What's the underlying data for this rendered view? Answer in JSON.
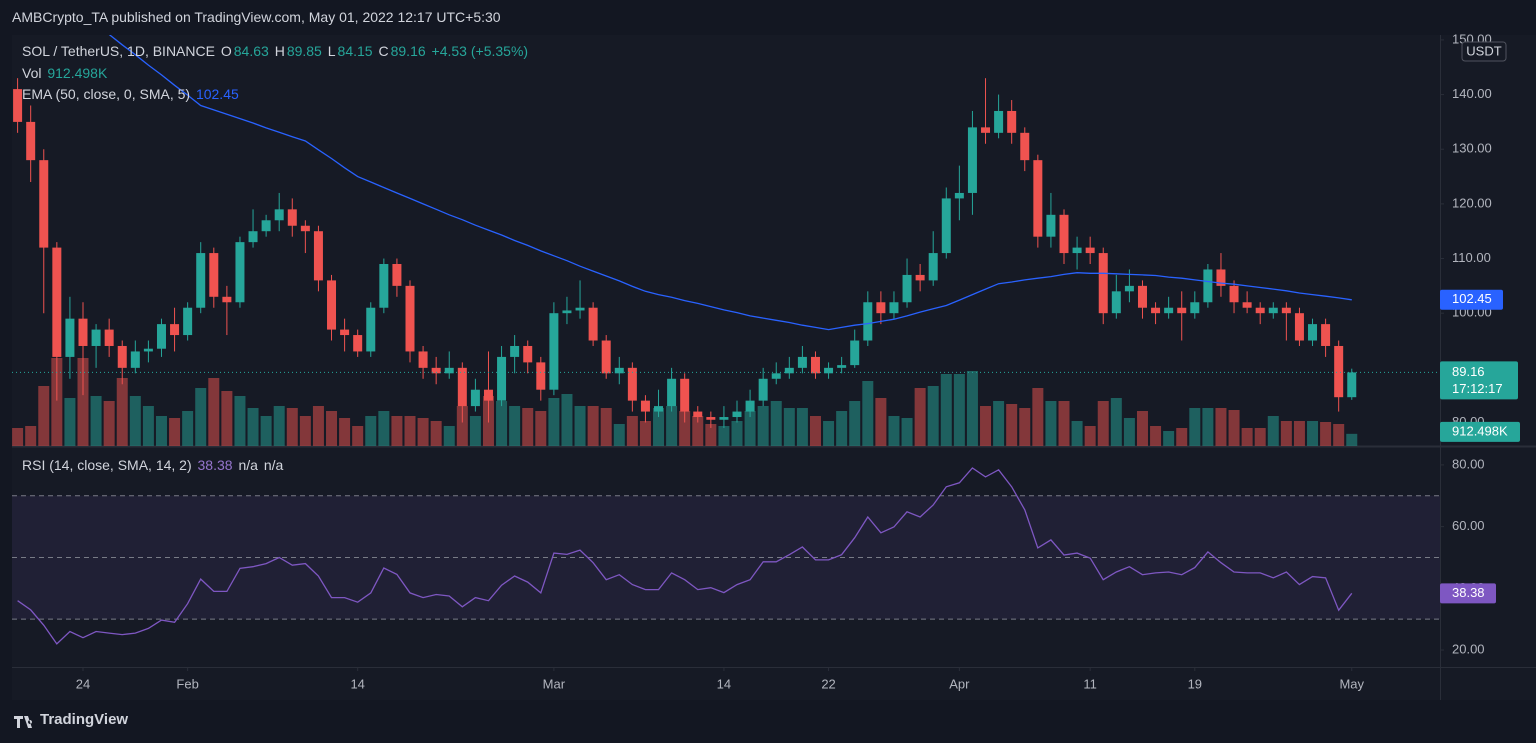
{
  "header": {
    "publisher": "AMBCrypto_TA published on TradingView.com, May 01, 2022 12:17 UTC+5:30"
  },
  "chart_data": {
    "type": "candlestick",
    "symbol_label": "SOL / TetherUS, 1D, BINANCE",
    "ohlc_keys": [
      "O",
      "H",
      "L",
      "C"
    ],
    "change_label": "+4.53 (+5.35%)",
    "currency": "USDT",
    "countdown": "17:12:17",
    "colors": {
      "up": "#26a69a",
      "down": "#ef5350"
    },
    "xticks": [
      {
        "value": 5,
        "label": "24"
      },
      {
        "value": 13,
        "label": "Feb"
      },
      {
        "value": 26,
        "label": "14"
      },
      {
        "value": 41,
        "label": "Mar"
      },
      {
        "value": 54,
        "label": "14"
      },
      {
        "value": 62,
        "label": "22"
      },
      {
        "value": 72,
        "label": "Apr"
      },
      {
        "value": 82,
        "label": "11"
      },
      {
        "value": 90,
        "label": "19"
      },
      {
        "value": 102,
        "label": "May"
      }
    ],
    "ylim": [
      75.7,
      150.9
    ],
    "yticks": [
      {
        "value": 80,
        "label": "80.00"
      },
      {
        "value": 90,
        "label": "90.00"
      },
      {
        "value": 100,
        "label": "100.00"
      },
      {
        "value": 110,
        "label": "110.00"
      },
      {
        "value": 120,
        "label": "120.00"
      },
      {
        "value": 130,
        "label": "130.00"
      },
      {
        "value": 140,
        "label": "140.00"
      },
      {
        "value": 150,
        "label": "150.00"
      }
    ],
    "open": [
      141,
      135,
      128,
      112,
      92,
      99,
      94,
      97,
      94,
      90,
      93,
      93.5,
      98,
      96,
      101,
      111,
      103,
      102,
      113,
      115,
      117,
      119,
      116,
      115,
      106,
      97,
      96,
      93,
      101,
      109,
      105,
      93,
      90,
      89,
      90,
      83,
      86,
      84,
      92,
      94,
      91,
      86,
      100,
      100.5,
      101,
      95,
      89,
      90,
      84,
      82,
      83,
      88,
      82,
      81,
      80.5,
      81,
      82,
      84,
      88,
      89,
      90,
      92,
      89,
      90,
      90.5,
      95,
      102,
      100,
      102,
      107,
      106,
      111,
      121,
      122,
      134,
      133,
      137,
      133,
      128,
      114,
      118,
      111,
      112,
      111,
      100,
      104,
      105,
      101,
      100,
      101,
      100,
      102,
      108,
      105,
      102,
      101,
      100,
      101,
      100,
      95,
      98,
      94,
      84.63
    ],
    "high": [
      143,
      138,
      130,
      113,
      103,
      102,
      98,
      99,
      95,
      95,
      95,
      99,
      101,
      102,
      113,
      112,
      105,
      114,
      119,
      118,
      122,
      121,
      117,
      116,
      107,
      99,
      97,
      102,
      110,
      110,
      106,
      94,
      92,
      93,
      91,
      88,
      93,
      94,
      96,
      95,
      92,
      102,
      103,
      106,
      102,
      96,
      92,
      91,
      85,
      86,
      90,
      89,
      83,
      82,
      83,
      84,
      86,
      90,
      91,
      92,
      94,
      93,
      91,
      92,
      97,
      104,
      104,
      104,
      110,
      109,
      115,
      123,
      127,
      137,
      143,
      140,
      139,
      134,
      129,
      122,
      119,
      114,
      114,
      112,
      107,
      108,
      106,
      102,
      103,
      104,
      104,
      109,
      111,
      106,
      104,
      102,
      102,
      102,
      101,
      99,
      99,
      95,
      89.85
    ],
    "low": [
      133,
      124,
      100,
      84,
      88,
      85,
      90,
      92,
      87,
      89,
      91,
      92,
      93,
      95,
      100,
      101,
      96,
      101,
      112,
      114,
      115,
      114,
      111,
      104,
      95,
      93,
      92,
      92,
      100,
      103,
      91,
      88,
      87,
      88,
      80,
      82,
      80,
      83,
      89,
      89,
      84,
      85,
      98,
      99,
      94,
      88,
      87,
      82,
      80,
      81,
      82,
      80,
      80,
      79,
      79,
      80,
      81,
      83,
      87,
      88,
      89,
      88,
      88,
      89,
      90,
      94,
      98,
      99,
      101,
      104,
      105,
      110,
      117,
      118,
      131,
      132,
      131,
      126,
      112,
      112,
      109,
      108,
      109,
      98,
      99,
      102,
      99,
      98,
      99,
      95,
      99,
      101,
      103,
      100,
      100,
      98,
      99,
      95,
      94,
      94,
      92,
      82,
      84.15
    ],
    "close": [
      135,
      128,
      112,
      92,
      99,
      94,
      97,
      94,
      90,
      93,
      93.5,
      98,
      96,
      101,
      111,
      103,
      102,
      113,
      115,
      117,
      119,
      116,
      115,
      106,
      97,
      96,
      93,
      101,
      109,
      105,
      93,
      90,
      89,
      90,
      83,
      86,
      84,
      92,
      94,
      91,
      86,
      100,
      100.5,
      101,
      95,
      89,
      90,
      84,
      82,
      83,
      88,
      82,
      81,
      80.5,
      81,
      82,
      84,
      88,
      89,
      90,
      92,
      89,
      90,
      90.5,
      95,
      102,
      100,
      102,
      107,
      106,
      111,
      121,
      122,
      134,
      133,
      137,
      133,
      128,
      114,
      118,
      111,
      112,
      111,
      100,
      104,
      105,
      101,
      100,
      101,
      100,
      102,
      108,
      105,
      102,
      101,
      100,
      101,
      100,
      95,
      98,
      94,
      84.63,
      89.16
    ],
    "volume": {
      "name": "Vol",
      "values": [
        1350000,
        1500000,
        4500000,
        6600000,
        3600000,
        6600000,
        3750000,
        3375000,
        5100000,
        3750000,
        3000000,
        2250000,
        2100000,
        2625000,
        4350000,
        5100000,
        4125000,
        3750000,
        2850000,
        2250000,
        3000000,
        2850000,
        2250000,
        3000000,
        2625000,
        2100000,
        1500000,
        2250000,
        2625000,
        2250000,
        2250000,
        2100000,
        1875000,
        1500000,
        3000000,
        2250000,
        3750000,
        3375000,
        3000000,
        2850000,
        2625000,
        3600000,
        3900000,
        3000000,
        3000000,
        2850000,
        1650000,
        2250000,
        1875000,
        2850000,
        3000000,
        2625000,
        2250000,
        1650000,
        1500000,
        1875000,
        2625000,
        3000000,
        3375000,
        2850000,
        2850000,
        2250000,
        1875000,
        2625000,
        3375000,
        4875000,
        3600000,
        2250000,
        2100000,
        4350000,
        4500000,
        5400000,
        5400000,
        5625000,
        3000000,
        3375000,
        3150000,
        2850000,
        4350000,
        3375000,
        3375000,
        1875000,
        1500000,
        3375000,
        3600000,
        2100000,
        2625000,
        1500000,
        1125000,
        1350000,
        2850000,
        2850000,
        2850000,
        2700000,
        1350000,
        1350000,
        2250000,
        1875000,
        1875000,
        1875000,
        1800000,
        1650000,
        912498
      ],
      "value_labels": {
        "102": "912.498K"
      }
    },
    "ema": {
      "name": "EMA (50, close, 0, SMA, 5)",
      "color": "#2962ff",
      "values": [
        null,
        null,
        null,
        null,
        null,
        null,
        null,
        151,
        149.1,
        147.3,
        145.4,
        143.6,
        141.7,
        139.9,
        138,
        137.2,
        136.4,
        135.6,
        134.8,
        133.9,
        133.1,
        132.3,
        131.5,
        129.9,
        128.3,
        126.6,
        125,
        124,
        123,
        122,
        121,
        120,
        119,
        118,
        117.1,
        116.1,
        115.2,
        114.3,
        113.3,
        112.4,
        111.4,
        110.5,
        109.6,
        108.6,
        107.7,
        106.8,
        105.9,
        104.9,
        104,
        103.4,
        102.9,
        102.3,
        101.8,
        101.2,
        100.6,
        100.1,
        99.5,
        99.1,
        98.7,
        98.3,
        97.8,
        97.4,
        97,
        97.4,
        97.8,
        98.1,
        98.5,
        98.9,
        99.5,
        100.2,
        100.8,
        101.4,
        102.4,
        103.4,
        104.4,
        105.4,
        105.7,
        106.1,
        106.4,
        106.7,
        107.1,
        107.4,
        107.3,
        107.3,
        107.2,
        107.1,
        107,
        106.9,
        106.6,
        106.4,
        106.1,
        105.8,
        105.5,
        105.3,
        105,
        104.7,
        104.4,
        104.1,
        103.7,
        103.4,
        103.1,
        102.8,
        102.45
      ]
    },
    "rsi": {
      "name": "RSI (14, close, SMA, 14, 2)",
      "color": "#7e57c2",
      "extras": [
        "n/a",
        "n/a"
      ],
      "ylim": [
        14.5,
        85.8
      ],
      "yticks": [
        {
          "value": 20,
          "label": "20.00"
        },
        {
          "value": 40,
          "label": "40.00"
        },
        {
          "value": 60,
          "label": "60.00"
        },
        {
          "value": 80,
          "label": "80.00"
        }
      ],
      "bands": [
        70,
        50,
        30
      ],
      "values": [
        36,
        33,
        28,
        22,
        26,
        24,
        26,
        25.5,
        25,
        25.5,
        27,
        29.7,
        29,
        35,
        43,
        39,
        39,
        46.5,
        47,
        48,
        50,
        47.5,
        48,
        44,
        37,
        37,
        35.5,
        38.5,
        46.6,
        44.5,
        38.5,
        37,
        38,
        37.5,
        34,
        37,
        36,
        41,
        44,
        42,
        38.5,
        51.4,
        51,
        52.4,
        48.3,
        42.8,
        44.4,
        41.2,
        39.6,
        39.6,
        45,
        42.8,
        39.6,
        40.2,
        38.6,
        41.2,
        42.8,
        48.6,
        48.6,
        50.9,
        53.4,
        49.2,
        49.2,
        50.9,
        56.4,
        63.1,
        58,
        59.9,
        64.8,
        63.1,
        67,
        72.9,
        74.2,
        79,
        76.1,
        78.4,
        72.9,
        65.4,
        53.1,
        55.7,
        50.8,
        51.4,
        49.8,
        42.8,
        45.3,
        47,
        44.4,
        45,
        45.3,
        44.4,
        46.7,
        51.8,
        48.3,
        45.3,
        45,
        45,
        43.4,
        45.3,
        41.2,
        43.8,
        43.4,
        32.9,
        38.38
      ]
    }
  },
  "footer": {
    "brand": "TradingView"
  }
}
